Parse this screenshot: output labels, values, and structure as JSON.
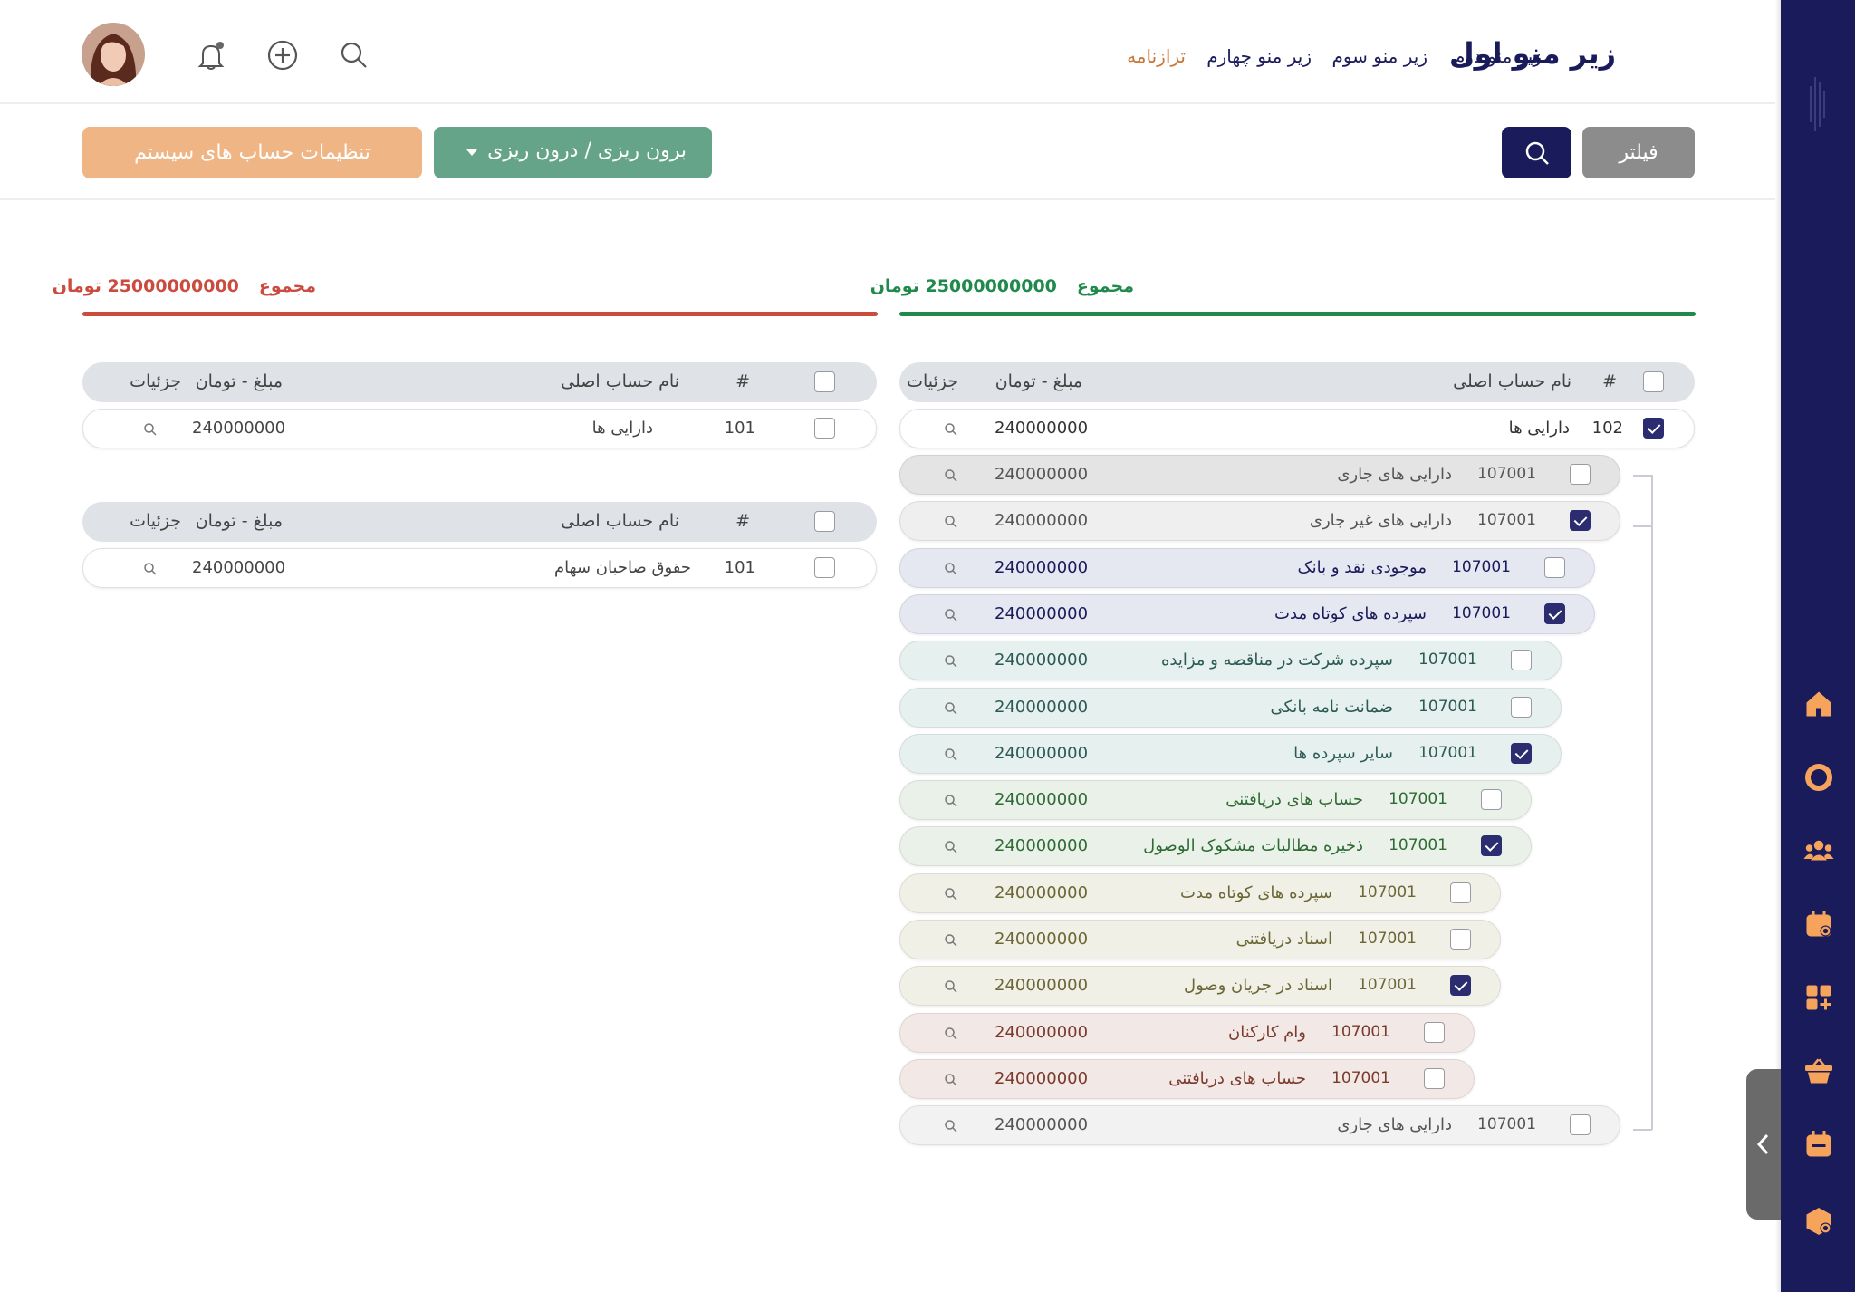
{
  "header": {
    "brand": "زیر منو اول",
    "nav": [
      "زیر منو دوم",
      "زیر منو سوم",
      "زیر منو چهارم",
      "ترازنامه"
    ]
  },
  "toolbar": {
    "filter_label": "فیلتر",
    "split_label": "برون ریزی / درون ریزی",
    "settings_label": "تنظیمات حساب های سیستم"
  },
  "right_panel": {
    "total_label": "مجموع",
    "total_value": "25000000000 تومان",
    "accent_color": "#1f8a4c",
    "header": {
      "hash": "#",
      "account_name": "نام حساب اصلی",
      "amount": "مبلغ - تومان",
      "details": "جزئیات"
    },
    "root": {
      "number": "102",
      "name": "دارایی ها",
      "amount": "240000000",
      "checked": true
    },
    "children": [
      {
        "number": "107001",
        "name": "دارایی های جاری",
        "amount": "240000000",
        "checked": false
      },
      {
        "number": "107001",
        "name": "دارایی های غیر جاری",
        "amount": "240000000",
        "checked": true
      },
      {
        "number": "107001",
        "name": "موجودی نقد و بانک",
        "amount": "240000000",
        "checked": false
      },
      {
        "number": "107001",
        "name": "سپرده های کوتاه مدت",
        "amount": "240000000",
        "checked": true
      },
      {
        "number": "107001",
        "name": "سپرده شرکت در مناقصه و مزایده",
        "amount": "240000000",
        "checked": false
      },
      {
        "number": "107001",
        "name": "ضمانت نامه بانکی",
        "amount": "240000000",
        "checked": false
      },
      {
        "number": "107001",
        "name": "سایر سپرده ها",
        "amount": "240000000",
        "checked": true
      },
      {
        "number": "107001",
        "name": "حساب های دریافتنی",
        "amount": "240000000",
        "checked": false
      },
      {
        "number": "107001",
        "name": "ذخیره مطالبات مشکوک الوصول",
        "amount": "240000000",
        "checked": true
      },
      {
        "number": "107001",
        "name": "سپرده های کوتاه مدت",
        "amount": "240000000",
        "checked": false
      },
      {
        "number": "107001",
        "name": "اسناد دریافتنی",
        "amount": "240000000",
        "checked": false
      },
      {
        "number": "107001",
        "name": "اسناد در جریان وصول",
        "amount": "240000000",
        "checked": true
      },
      {
        "number": "107001",
        "name": "وام کارکنان",
        "amount": "240000000",
        "checked": false
      },
      {
        "number": "107001",
        "name": "حساب های دریافتنی",
        "amount": "240000000",
        "checked": false
      },
      {
        "number": "107001",
        "name": "دارایی های جاری",
        "amount": "240000000",
        "checked": false
      }
    ]
  },
  "left_panel": {
    "total_label": "مجموع",
    "total_value": "25000000000 تومان",
    "accent_color": "#cc4b3f",
    "tables": [
      {
        "header": {
          "hash": "#",
          "account_name": "نام حساب اصلی",
          "amount": "مبلغ - تومان",
          "details": "جزئیات"
        },
        "row": {
          "number": "101",
          "name": "دارایی ها",
          "amount": "240000000",
          "checked": false
        }
      },
      {
        "header": {
          "hash": "#",
          "account_name": "نام حساب اصلی",
          "amount": "مبلغ - تومان",
          "details": "جزئیات"
        },
        "row": {
          "number": "101",
          "name": "حقوق صاحبان سهام",
          "amount": "240000000",
          "checked": false
        }
      }
    ]
  },
  "sidebar": {
    "icons": [
      "home-icon",
      "circle-icon",
      "team-icon",
      "calendar-settings-icon",
      "apps-add-icon",
      "basket-icon",
      "calendar-icon",
      "box-settings-icon"
    ]
  }
}
